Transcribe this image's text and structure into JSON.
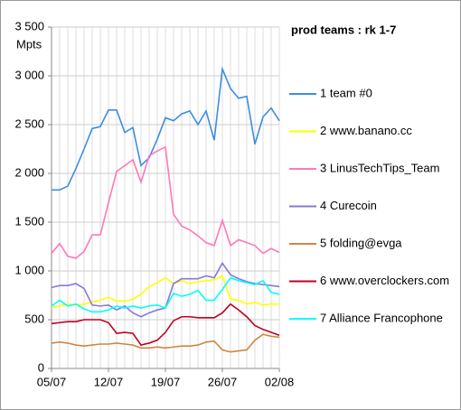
{
  "chart_data": {
    "type": "line",
    "title": "prod teams : rk 1-7",
    "y_label": "Mpts",
    "categories": [
      "05/07",
      null,
      null,
      null,
      null,
      null,
      null,
      "12/07",
      null,
      null,
      null,
      null,
      null,
      null,
      "19/07",
      null,
      null,
      null,
      null,
      null,
      null,
      "26/07",
      null,
      null,
      null,
      null,
      null,
      null,
      "02/08"
    ],
    "ylim": [
      0,
      3500
    ],
    "yticks": [
      0,
      500,
      {
        "value": 1000,
        "label": "1 000"
      },
      {
        "value": 1500,
        "label": "1 500"
      },
      {
        "value": 2000,
        "label": "2 000"
      },
      {
        "value": 2500,
        "label": "2 500"
      },
      {
        "value": 3000,
        "label": "3 000"
      },
      {
        "value": 3500,
        "label": "3 500"
      }
    ],
    "grid": true,
    "series": [
      {
        "name": "1 team #0",
        "color": "#3c8ee0",
        "values": [
          1830,
          1830,
          1870,
          2050,
          2250,
          2460,
          2480,
          2650,
          2650,
          2420,
          2470,
          2080,
          2160,
          2350,
          2570,
          2540,
          2610,
          2640,
          2500,
          2640,
          2340,
          3070,
          2870,
          2770,
          2790,
          2300,
          2580,
          2670,
          2540
        ]
      },
      {
        "name": "2 www.banano.cc",
        "color": "#ffff00",
        "values": [
          630,
          640,
          660,
          650,
          660,
          680,
          700,
          730,
          690,
          690,
          710,
          760,
          840,
          880,
          930,
          870,
          900,
          870,
          890,
          900,
          910,
          950,
          710,
          700,
          660,
          680,
          650,
          660,
          660
        ]
      },
      {
        "name": "3 LinusTechTips_Team",
        "color": "#ff77bb",
        "values": [
          1180,
          1280,
          1150,
          1130,
          1200,
          1370,
          1370,
          1700,
          2020,
          2080,
          2140,
          1910,
          2180,
          2230,
          2270,
          1580,
          1460,
          1420,
          1360,
          1290,
          1260,
          1520,
          1260,
          1320,
          1290,
          1260,
          1180,
          1230,
          1190
        ]
      },
      {
        "name": "4 Curecoin",
        "color": "#8877dd",
        "values": [
          830,
          850,
          850,
          870,
          820,
          650,
          640,
          650,
          600,
          640,
          570,
          530,
          570,
          600,
          620,
          870,
          920,
          920,
          920,
          950,
          930,
          1080,
          960,
          920,
          890,
          870,
          860,
          850,
          840
        ]
      },
      {
        "name": "5 folding@evga",
        "color": "#cc8844",
        "values": [
          260,
          270,
          260,
          240,
          230,
          240,
          250,
          250,
          260,
          250,
          240,
          210,
          210,
          220,
          210,
          220,
          230,
          230,
          240,
          270,
          280,
          190,
          170,
          180,
          190,
          290,
          350,
          330,
          320
        ]
      },
      {
        "name": "6 www.overclockers.com",
        "color": "#c00020",
        "values": [
          460,
          470,
          480,
          480,
          500,
          500,
          500,
          470,
          360,
          370,
          360,
          240,
          260,
          290,
          370,
          490,
          530,
          530,
          520,
          520,
          520,
          570,
          660,
          600,
          530,
          440,
          400,
          370,
          340
        ]
      },
      {
        "name": "7 Alliance Francophone",
        "color": "#00ffff",
        "values": [
          640,
          700,
          640,
          660,
          610,
          580,
          580,
          600,
          640,
          620,
          640,
          620,
          640,
          650,
          620,
          770,
          740,
          760,
          800,
          700,
          700,
          810,
          930,
          900,
          880,
          860,
          900,
          780,
          760
        ]
      }
    ]
  }
}
